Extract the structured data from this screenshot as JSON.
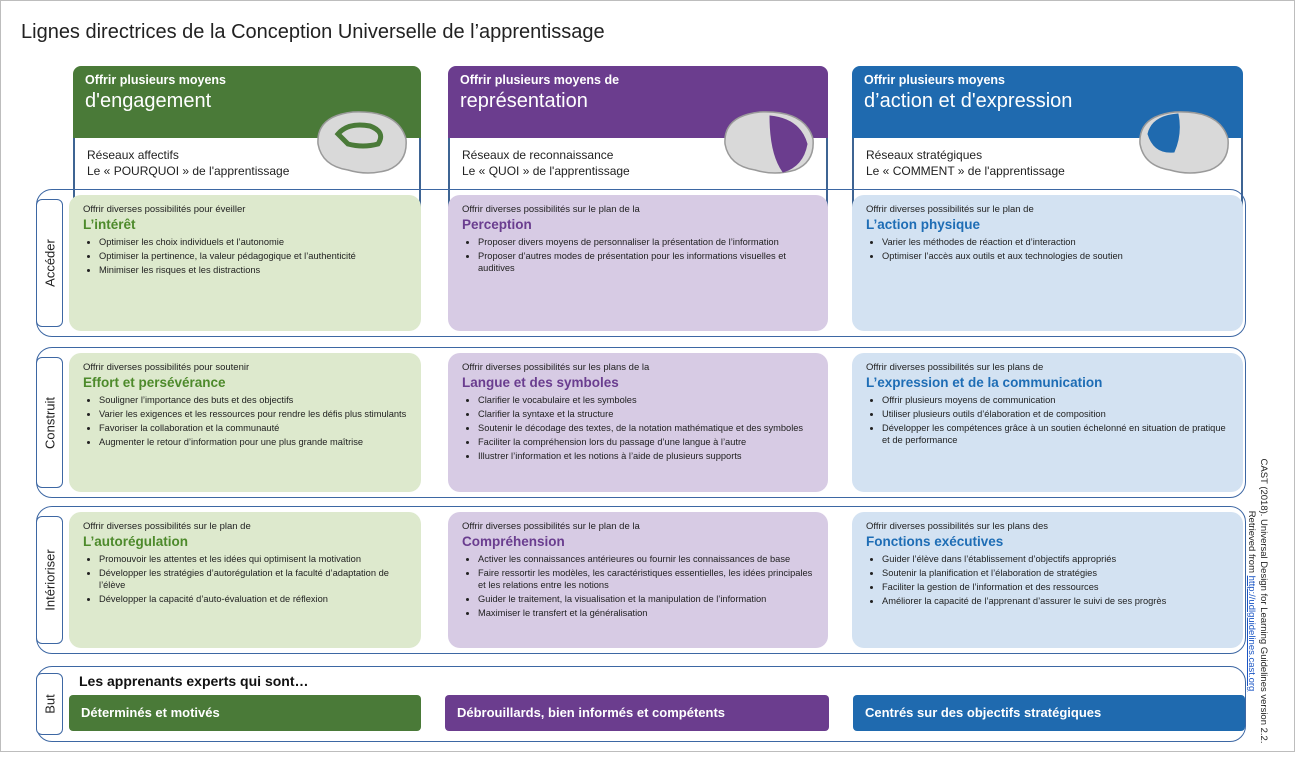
{
  "title": "Lignes directrices de la Conception Universelle de l’apprentissage",
  "columns": [
    {
      "line1": "Offrir plusieurs moyens",
      "line2": "d'engagement",
      "network": "Réseaux affectifs",
      "question": "Le « POURQUOI » de l'apprentissage"
    },
    {
      "line1": "Offrir plusieurs moyens de",
      "line2": "représentation",
      "network": "Réseaux de reconnaissance",
      "question": "Le « QUOI » de l'apprentissage"
    },
    {
      "line1": "Offrir plusieurs moyens",
      "line2": "d’action et d'expression",
      "network": "Réseaux stratégiques",
      "question": "Le « COMMENT » de l'apprentissage"
    }
  ],
  "rows": [
    {
      "label": "Accéder",
      "cells": [
        {
          "intro": "Offrir diverses possibilités pour  éveiller",
          "heading": "L’intérêt",
          "bullets": [
            "Optimiser les choix individuels et l’autonomie",
            "Optimiser la pertinence, la valeur pédagogique et l’authenticité",
            "Minimiser les risques et les distractions"
          ]
        },
        {
          "intro": "Offrir diverses possibilités sur le plan de la",
          "heading": "Perception",
          "bullets": [
            "Proposer divers moyens de personnaliser la présentation de l’information",
            "Proposer d’autres modes de présentation pour les informations visuelles et auditives"
          ]
        },
        {
          "intro": "Offrir diverses possibilités sur le plan de",
          "heading": "L’action physique",
          "bullets": [
            "Varier les méthodes de réaction et d’interaction",
            "Optimiser l’accès aux outils et aux technologies de soutien"
          ]
        }
      ]
    },
    {
      "label": "Construit",
      "cells": [
        {
          "intro": "Offrir diverses possibilités pour soutenir",
          "heading": "Effort et persévérance",
          "bullets": [
            "Souligner l’importance des buts et des objectifs",
            "Varier les exigences et les ressources pour rendre les défis plus stimulants",
            "Favoriser la collaboration et la communauté",
            "Augmenter le retour d’information pour une plus grande maîtrise"
          ]
        },
        {
          "intro": "Offrir diverses possibilités sur les plans de la",
          "heading": "Langue et des symboles",
          "bullets": [
            "Clarifier le vocabulaire et les symboles",
            "Clarifier la syntaxe et la structure",
            "Soutenir le décodage des textes, de la notation mathématique et des symboles",
            "Faciliter la compréhension lors du passage d’une langue à l’autre",
            "Illustrer l’information et les notions à l’aide de plusieurs supports"
          ]
        },
        {
          "intro": "Offrir diverses possibilités sur les plans de",
          "heading": "L’expression et de la communication",
          "bullets": [
            "Offrir plusieurs moyens de communication",
            "Utiliser plusieurs outils d’élaboration et de composition",
            "Développer les compétences grâce à un soutien échelonné en situation de pratique et de performance"
          ]
        }
      ]
    },
    {
      "label": "Intérioriser",
      "cells": [
        {
          "intro": "Offrir diverses possibilités sur le plan de",
          "heading": "L’autorégulation",
          "bullets": [
            "Promouvoir les attentes et les idées qui optimisent la motivation",
            "Développer les stratégies d’autorégulation et la faculté d’adaptation de l’élève",
            "Développer la capacité d’auto-évaluation et de réflexion"
          ]
        },
        {
          "intro": "Offrir diverses possibilités sur le plan de la",
          "heading": "Compréhension",
          "bullets": [
            "Activer les connaissances antérieures ou fournir les connaissances de base",
            "Faire ressortir les modèles, les caractéristiques essentielles, les idées principales et les relations entre les notions",
            "Guider le traitement, la visualisation et la manipulation de l’information",
            "Maximiser le transfert et la généralisation"
          ]
        },
        {
          "intro": "Offrir diverses possibilités sur les plans des",
          "heading": "Fonctions exécutives",
          "bullets": [
            "Guider l’élève dans l’établissement d’objectifs appropriés",
            "Soutenir la planification et l’élaboration de stratégies",
            "Faciliter la gestion de l’information et des ressources",
            "Améliorer la capacité de l’apprenant d’assurer le suivi de ses progrès"
          ]
        }
      ]
    }
  ],
  "goal": {
    "label": "But",
    "heading": "Les apprenants experts qui sont…",
    "items": [
      "Déterminés et motivés",
      "Débrouillards, bien informés et compétents",
      "Centrés sur des objectifs stratégiques"
    ]
  },
  "citation": {
    "line1": "CAST (2018). Universal Design for Learning Guidelines version 2.2.",
    "prefix": "Retrieved from",
    "link": "http://udlguidelines.cast.org"
  }
}
